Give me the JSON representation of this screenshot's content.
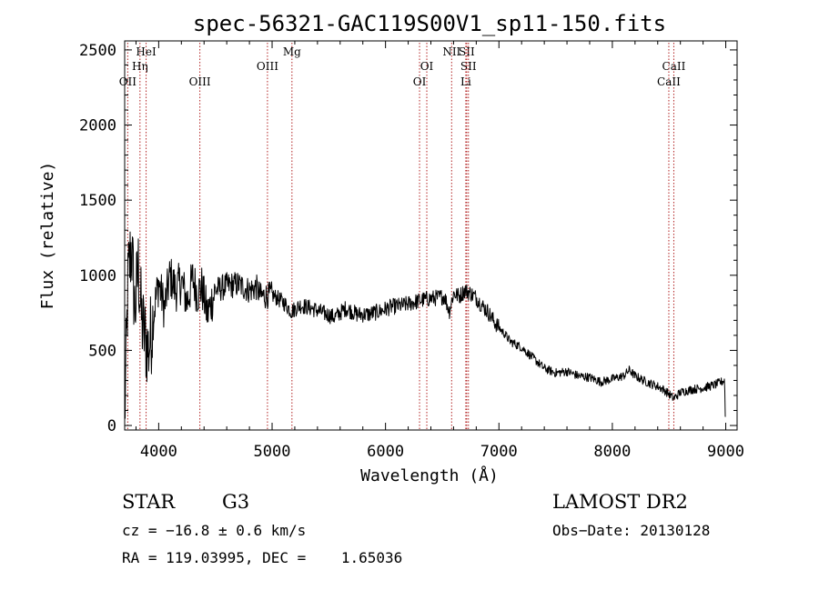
{
  "chart_data": {
    "type": "line",
    "title": "spec-56321-GAC119S00V1_sp11-150.fits",
    "xlabel": "Wavelength (Å)",
    "ylabel": "Flux (relative)",
    "xlim": [
      3700,
      9100
    ],
    "ylim": [
      -30,
      2560
    ],
    "x_ticks": [
      4000,
      5000,
      6000,
      7000,
      8000,
      9000
    ],
    "y_ticks": [
      0,
      500,
      1000,
      1500,
      2000,
      2500
    ],
    "grid": false,
    "series": [
      {
        "x": [
          3700,
          3730,
          3760,
          3790,
          3820,
          3850,
          3880,
          3910,
          3940,
          3970,
          4000,
          4050,
          4100,
          4150,
          4200,
          4250,
          4300,
          4340,
          4380,
          4430,
          4500,
          4600,
          4700,
          4800,
          4860,
          4900,
          5000,
          5100,
          5170,
          5250,
          5350,
          5450,
          5550,
          5650,
          5750,
          5850,
          5950,
          6050,
          6150,
          6250,
          6350,
          6450,
          6520,
          6563,
          6600,
          6650,
          6700,
          6750,
          6800,
          6850,
          6900,
          6950,
          7000,
          7050,
          7100,
          7150,
          7200,
          7300,
          7400,
          7500,
          7600,
          7700,
          7800,
          7900,
          8000,
          8100,
          8150,
          8200,
          8300,
          8400,
          8450,
          8500,
          8540,
          8600,
          8700,
          8800,
          8900,
          8990,
          9000
        ],
        "y": [
          40,
          980,
          1200,
          760,
          1050,
          700,
          580,
          500,
          650,
          820,
          950,
          780,
          1000,
          900,
          960,
          820,
          980,
          880,
          920,
          740,
          900,
          930,
          940,
          900,
          920,
          860,
          870,
          820,
          760,
          800,
          780,
          750,
          720,
          780,
          740,
          740,
          760,
          790,
          800,
          820,
          840,
          850,
          860,
          760,
          880,
          860,
          900,
          880,
          850,
          800,
          760,
          700,
          650,
          610,
          560,
          540,
          520,
          450,
          380,
          350,
          360,
          330,
          320,
          290,
          310,
          330,
          370,
          330,
          290,
          260,
          240,
          210,
          180,
          220,
          240,
          250,
          270,
          300,
          60
        ]
      }
    ],
    "lines": [
      {
        "label": "HeI",
        "x": 3889,
        "row": 0
      },
      {
        "label": "Hη",
        "x": 3835,
        "row": 1
      },
      {
        "label": "OII",
        "x": 3727,
        "row": 2
      },
      {
        "label": "OIII",
        "x": 4363,
        "row": 2
      },
      {
        "label": "OIII",
        "x": 4959,
        "row": 1
      },
      {
        "label": "Mg",
        "x": 5175,
        "row": 0
      },
      {
        "label": "OI",
        "x": 6364,
        "row": 1
      },
      {
        "label": "OI",
        "x": 6300,
        "row": 2
      },
      {
        "label": "NII",
        "x": 6583,
        "row": 0
      },
      {
        "label": "SII",
        "x": 6716,
        "row": 0
      },
      {
        "label": "SII",
        "x": 6731,
        "row": 1
      },
      {
        "label": "Li",
        "x": 6708,
        "row": 2
      },
      {
        "label": "CaII",
        "x": 8542,
        "row": 1
      },
      {
        "label": "CaII",
        "x": 8498,
        "row": 2
      }
    ]
  },
  "info": {
    "object_class": "STAR",
    "subclass": "G3",
    "cz": "cz = −16.8 ± 0.6 km/s",
    "radec": "RA = 119.03995, DEC =    1.65036",
    "survey": "LAMOST DR2",
    "obs_date": "Obs−Date: 20130128"
  }
}
